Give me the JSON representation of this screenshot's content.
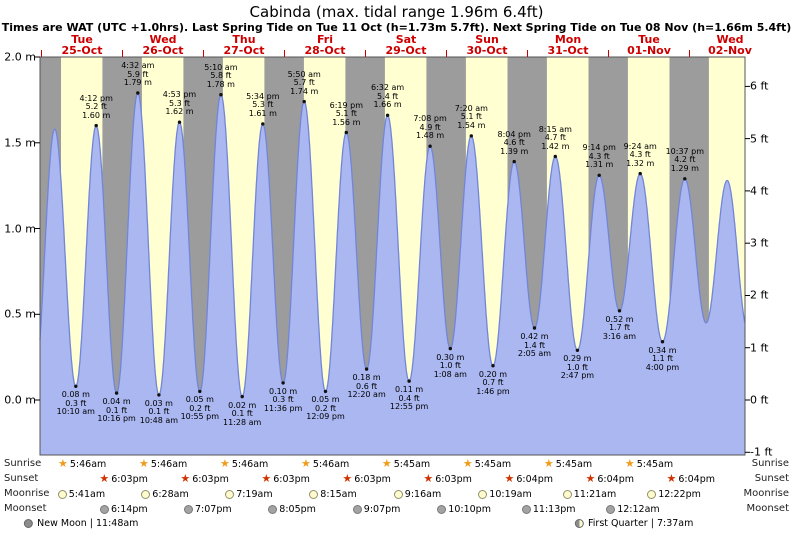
{
  "title": "Cabinda (max. tidal range 1.96m 6.4ft)",
  "subtitle": "Times are WAT (UTC +1.0hrs). Last Spring Tide on Tue 11 Oct (h=1.73m 5.7ft). Next Spring Tide on Tue 08 Nov (h=1.66m 5.4ft)",
  "days": [
    {
      "dow": "Tue",
      "date": "25-Oct"
    },
    {
      "dow": "Wed",
      "date": "26-Oct"
    },
    {
      "dow": "Thu",
      "date": "27-Oct"
    },
    {
      "dow": "Fri",
      "date": "28-Oct"
    },
    {
      "dow": "Sat",
      "date": "29-Oct"
    },
    {
      "dow": "Sun",
      "date": "30-Oct"
    },
    {
      "dow": "Mon",
      "date": "31-Oct"
    },
    {
      "dow": "Tue",
      "date": "01-Nov"
    },
    {
      "dow": "Wed",
      "date": "02-Nov"
    }
  ],
  "y_axis_left": {
    "labels": [
      "2.0 m",
      "1.5 m",
      "1.0 m",
      "0.5 m",
      "0.0 m"
    ],
    "values": [
      2.0,
      1.5,
      1.0,
      0.5,
      0.0
    ]
  },
  "y_axis_right": {
    "labels": [
      "6 ft",
      "5 ft",
      "4 ft",
      "3 ft",
      "2 ft",
      "1 ft",
      "0 ft",
      "-1 ft"
    ],
    "values": [
      6,
      5,
      4,
      3,
      2,
      1,
      0,
      -1
    ]
  },
  "chart_data": {
    "type": "area",
    "x_axis": "time, days from Tue 25-Oct 00:00 (WAT)",
    "ylim_m": [
      -0.3,
      2.0
    ],
    "tides": [
      {
        "day": 0,
        "type": "high",
        "time": "4:12 pm",
        "ft": "5.2 ft",
        "m": "1.60 m",
        "height_m": 1.6
      },
      {
        "day": 1,
        "type": "high",
        "time": "4:32 am",
        "ft": "5.9 ft",
        "m": "1.79 m",
        "height_m": 1.79
      },
      {
        "day": 1,
        "type": "high",
        "time": "4:53 pm",
        "ft": "5.3 ft",
        "m": "1.62 m",
        "height_m": 1.62
      },
      {
        "day": 2,
        "type": "high",
        "time": "5:10 am",
        "ft": "5.8 ft",
        "m": "1.78 m",
        "height_m": 1.78
      },
      {
        "day": 2,
        "type": "high",
        "time": "5:34 pm",
        "ft": "5.3 ft",
        "m": "1.61 m",
        "height_m": 1.61
      },
      {
        "day": 3,
        "type": "high",
        "time": "5:50 am",
        "ft": "5.7 ft",
        "m": "1.74 m",
        "height_m": 1.74
      },
      {
        "day": 3,
        "type": "high",
        "time": "6:19 pm",
        "ft": "5.1 ft",
        "m": "1.56 m",
        "height_m": 1.56
      },
      {
        "day": 4,
        "type": "high",
        "time": "6:32 am",
        "ft": "5.4 ft",
        "m": "1.66 m",
        "height_m": 1.66
      },
      {
        "day": 4,
        "type": "high",
        "time": "7:08 pm",
        "ft": "4.9 ft",
        "m": "1.48 m",
        "height_m": 1.48
      },
      {
        "day": 5,
        "type": "high",
        "time": "7:20 am",
        "ft": "5.1 ft",
        "m": "1.54 m",
        "height_m": 1.54
      },
      {
        "day": 5,
        "type": "high",
        "time": "8:04 pm",
        "ft": "4.6 ft",
        "m": "1.39 m",
        "height_m": 1.39
      },
      {
        "day": 6,
        "type": "high",
        "time": "8:15 am",
        "ft": "4.7 ft",
        "m": "1.42 m",
        "height_m": 1.42
      },
      {
        "day": 6,
        "type": "high",
        "time": "9:14 pm",
        "ft": "4.3 ft",
        "m": "1.31 m",
        "height_m": 1.31
      },
      {
        "day": 7,
        "type": "high",
        "time": "9:24 am",
        "ft": "4.3 ft",
        "m": "1.32 m",
        "height_m": 1.32
      },
      {
        "day": 7,
        "type": "high",
        "time": "10:37 pm",
        "ft": "4.2 ft",
        "m": "1.29 m",
        "height_m": 1.29
      },
      {
        "day": 0,
        "type": "low",
        "time": "10:10 am",
        "ft": "0.3 ft",
        "m": "0.08 m",
        "height_m": 0.08
      },
      {
        "day": 0,
        "type": "low",
        "time": "10:16 pm",
        "ft": "0.1 ft",
        "m": "0.04 m",
        "height_m": 0.04
      },
      {
        "day": 1,
        "type": "low",
        "time": "10:48 am",
        "ft": "0.1 ft",
        "m": "0.03 m",
        "height_m": 0.03
      },
      {
        "day": 1,
        "type": "low",
        "time": "10:55 pm",
        "ft": "0.2 ft",
        "m": "0.05 m",
        "height_m": 0.05
      },
      {
        "day": 2,
        "type": "low",
        "time": "11:28 am",
        "ft": "0.1 ft",
        "m": "0.02 m",
        "height_m": 0.02
      },
      {
        "day": 2,
        "type": "low",
        "time": "11:36 pm",
        "ft": "0.3 ft",
        "m": "0.10 m",
        "height_m": 0.1
      },
      {
        "day": 3,
        "type": "low",
        "time": "12:09 pm",
        "ft": "0.2 ft",
        "m": "0.05 m",
        "height_m": 0.05
      },
      {
        "day": 4,
        "type": "low",
        "time": "12:20 am",
        "ft": "0.6 ft",
        "m": "0.18 m",
        "height_m": 0.18
      },
      {
        "day": 4,
        "type": "low",
        "time": "12:55 pm",
        "ft": "0.4 ft",
        "m": "0.11 m",
        "height_m": 0.11
      },
      {
        "day": 5,
        "type": "low",
        "time": "1:08 am",
        "ft": "1.0 ft",
        "m": "0.30 m",
        "height_m": 0.3
      },
      {
        "day": 5,
        "type": "low",
        "time": "1:46 pm",
        "ft": "0.7 ft",
        "m": "0.20 m",
        "height_m": 0.2
      },
      {
        "day": 6,
        "type": "low",
        "time": "2:05 am",
        "ft": "1.4 ft",
        "m": "0.42 m",
        "height_m": 0.42
      },
      {
        "day": 6,
        "type": "low",
        "time": "2:47 pm",
        "ft": "1.0 ft",
        "m": "0.29 m",
        "height_m": 0.29
      },
      {
        "day": 7,
        "type": "low",
        "time": "3:16 am",
        "ft": "1.7 ft",
        "m": "0.52 m",
        "height_m": 0.52
      },
      {
        "day": 7,
        "type": "low",
        "time": "4:00 pm",
        "ft": "1.1 ft",
        "m": "0.34 m",
        "height_m": 0.34
      }
    ],
    "unlabeled_curve_estimates": [
      {
        "day": -1,
        "time": "9:45 pm",
        "height_m": 0.05
      },
      {
        "day": 0,
        "time": "3:55 am",
        "height_m": 1.58
      },
      {
        "day": 8,
        "time": "4:55 am",
        "height_m": 0.45
      },
      {
        "day": 8,
        "time": "11:10 am",
        "height_m": 1.28
      },
      {
        "day": 8,
        "time": "5:20 pm",
        "height_m": 0.4
      }
    ]
  },
  "astro": {
    "rows": [
      {
        "key": "sunrise",
        "label": "Sunrise",
        "icon": "star",
        "color": "#f09c1a",
        "events": [
          {
            "day": 0,
            "time": "5:46am"
          },
          {
            "day": 1,
            "time": "5:46am"
          },
          {
            "day": 2,
            "time": "5:46am"
          },
          {
            "day": 3,
            "time": "5:46am"
          },
          {
            "day": 4,
            "time": "5:45am"
          },
          {
            "day": 5,
            "time": "5:45am"
          },
          {
            "day": 6,
            "time": "5:45am"
          },
          {
            "day": 7,
            "time": "5:45am"
          }
        ]
      },
      {
        "key": "sunset",
        "label": "Sunset",
        "icon": "star",
        "color": "#d03200",
        "events": [
          {
            "day": 0,
            "time": "6:03pm"
          },
          {
            "day": 1,
            "time": "6:03pm"
          },
          {
            "day": 2,
            "time": "6:03pm"
          },
          {
            "day": 3,
            "time": "6:03pm"
          },
          {
            "day": 4,
            "time": "6:03pm"
          },
          {
            "day": 5,
            "time": "6:04pm"
          },
          {
            "day": 6,
            "time": "6:04pm"
          },
          {
            "day": 7,
            "time": "6:04pm"
          }
        ]
      },
      {
        "key": "moonrise",
        "label": "Moonrise",
        "icon": "circle",
        "fill": "#fffbce",
        "border": "#90906a",
        "events": [
          {
            "day": 0,
            "time": "5:41am"
          },
          {
            "day": 1,
            "time": "6:28am"
          },
          {
            "day": 2,
            "time": "7:19am"
          },
          {
            "day": 3,
            "time": "8:15am"
          },
          {
            "day": 4,
            "time": "9:16am"
          },
          {
            "day": 5,
            "time": "10:19am"
          },
          {
            "day": 6,
            "time": "11:21am"
          },
          {
            "day": 7,
            "time": "12:22pm"
          }
        ]
      },
      {
        "key": "moonset",
        "label": "Moonset",
        "icon": "circle",
        "fill": "#a3a3a3",
        "border": "#787878",
        "events": [
          {
            "day": 0,
            "time": "6:14pm"
          },
          {
            "day": 1,
            "time": "7:07pm"
          },
          {
            "day": 2,
            "time": "8:05pm"
          },
          {
            "day": 3,
            "time": "9:07pm"
          },
          {
            "day": 4,
            "time": "10:10pm"
          },
          {
            "day": 5,
            "time": "11:13pm"
          },
          {
            "day": 7,
            "time": "12:12am"
          }
        ]
      }
    ],
    "phases": [
      {
        "key": "new-moon",
        "name": "New Moon",
        "time": "11:48am",
        "day": 0
      },
      {
        "key": "first-quarter",
        "name": "First Quarter",
        "time": "7:37am",
        "day": 7
      }
    ]
  },
  "colors": {
    "day_stripe": "#ffffd2",
    "night_stripe": "#9c9c9c",
    "tide_fill": "#aab7f0",
    "tide_stroke": "#7286d8",
    "date_red": "#cc0000"
  }
}
